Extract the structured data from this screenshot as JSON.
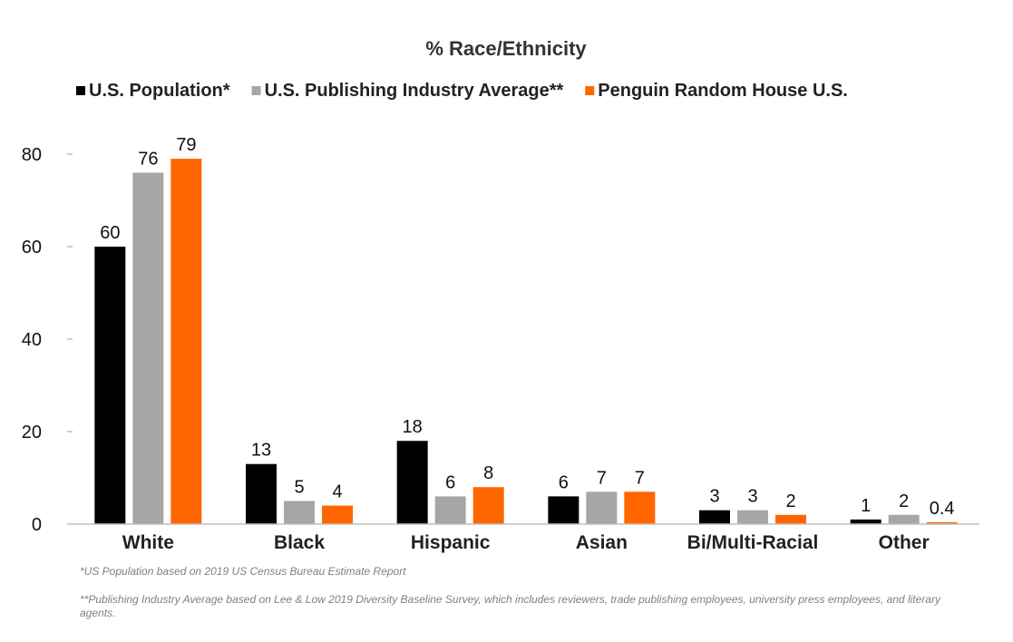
{
  "chart_data": {
    "type": "bar",
    "title": "% Race/Ethnicity",
    "categories": [
      "White",
      "Black",
      "Hispanic",
      "Asian",
      "Bi/Multi-Racial",
      "Other"
    ],
    "series": [
      {
        "name": "U.S. Population*",
        "color": "#000000",
        "values": [
          60,
          13,
          18,
          6,
          3,
          1
        ],
        "labels": [
          "60",
          "13",
          "18",
          "6",
          "3",
          "1"
        ]
      },
      {
        "name": "U.S. Publishing Industry Average**",
        "color": "#a6a6a6",
        "values": [
          76,
          5,
          6,
          7,
          3,
          2
        ],
        "labels": [
          "76",
          "5",
          "6",
          "7",
          "3",
          "2"
        ]
      },
      {
        "name": "Penguin Random House U.S.",
        "color": "#ff6600",
        "values": [
          79,
          4,
          8,
          7,
          2,
          0.4
        ],
        "labels": [
          "79",
          "4",
          "8",
          "7",
          "2",
          "0.4"
        ]
      }
    ],
    "yticks": [
      "0",
      "20",
      "40",
      "60",
      "80"
    ],
    "ylim": [
      0,
      80
    ],
    "xlabel": "",
    "ylabel": "",
    "grid": false,
    "legend_position": "top"
  },
  "footnotes": [
    "*US Population based on 2019 US Census Bureau Estimate Report",
    "**Publishing Industry Average based on Lee & Low 2019 Diversity Baseline Survey, which includes reviewers, trade publishing employees, university press employees, and literary agents."
  ]
}
